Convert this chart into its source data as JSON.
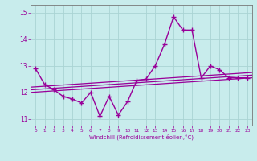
{
  "xlabel": "Windchill (Refroidissement éolien,°C)",
  "bg_color": "#c8ecec",
  "grid_color": "#aad4d4",
  "line_color": "#990099",
  "x_hours": [
    0,
    1,
    2,
    3,
    4,
    5,
    6,
    7,
    8,
    9,
    10,
    11,
    12,
    13,
    14,
    15,
    16,
    17,
    18,
    19,
    20,
    21,
    22,
    23
  ],
  "windchill": [
    12.9,
    12.3,
    12.1,
    11.85,
    11.75,
    11.6,
    12.0,
    11.1,
    11.85,
    11.15,
    11.65,
    12.45,
    12.5,
    13.0,
    13.8,
    14.85,
    14.35,
    14.35,
    12.55,
    13.0,
    12.85,
    12.55,
    12.55,
    12.55
  ],
  "reg_lines": [
    [
      12.0,
      12.55
    ],
    [
      12.1,
      12.65
    ],
    [
      12.2,
      12.75
    ]
  ],
  "ylim": [
    10.75,
    15.3
  ],
  "xlim": [
    -0.5,
    23.5
  ],
  "xtick_labels": [
    "0",
    "1",
    "2",
    "3",
    "4",
    "5",
    "6",
    "7",
    "8",
    "9",
    "10",
    "11",
    "12",
    "13",
    "14",
    "15",
    "16",
    "17",
    "18",
    "19",
    "20",
    "21",
    "22",
    "23"
  ],
  "ytick_labels": [
    "11",
    "12",
    "13",
    "14",
    "15"
  ],
  "yticks": [
    11,
    12,
    13,
    14,
    15
  ]
}
